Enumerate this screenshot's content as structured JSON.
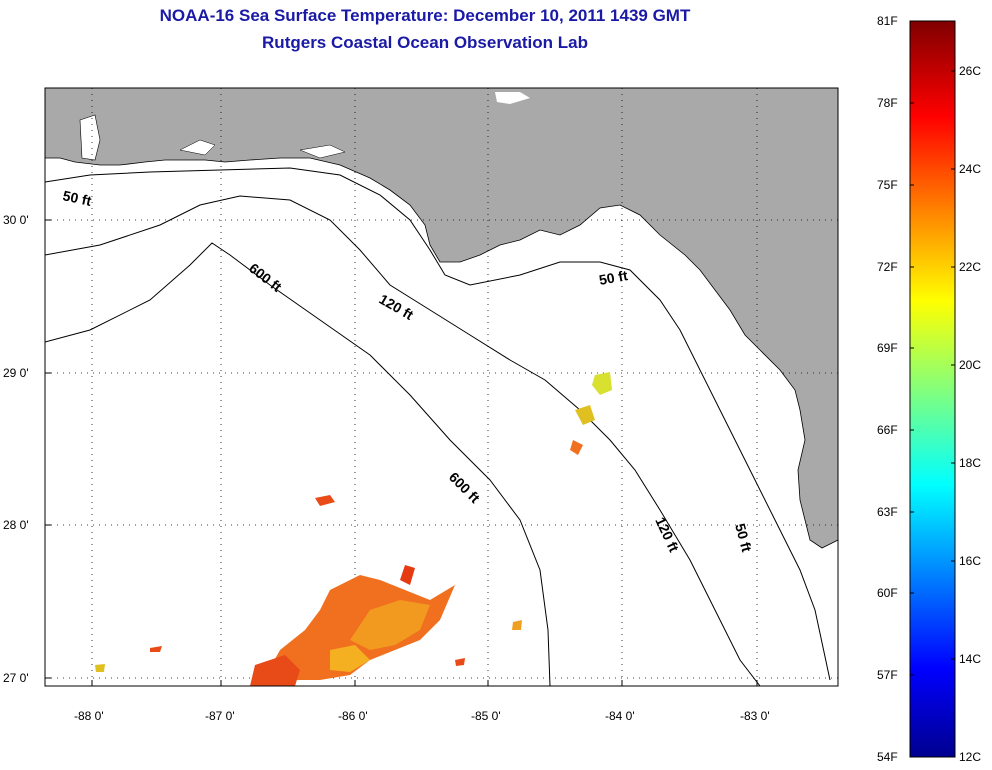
{
  "title": {
    "line1": "NOAA-16 Sea Surface Temperature:  December 10, 2011 1439 GMT",
    "line2": "Rutgers Coastal Ocean Observation Lab"
  },
  "axes": {
    "longitude_labels": [
      "-88 0'",
      "-87 0'",
      "-86 0'",
      "-85 0'",
      "-84 0'",
      "-83 0'"
    ],
    "latitude_labels": [
      "30 0'",
      "29 0'",
      "28 0'",
      "27 0'"
    ]
  },
  "contours": {
    "label_50": "50 ft",
    "label_120": "120 ft",
    "label_600": "600 ft"
  },
  "colorbar": {
    "fahrenheit": [
      "81F",
      "78F",
      "75F",
      "72F",
      "69F",
      "66F",
      "63F",
      "60F",
      "57F",
      "54F"
    ],
    "celsius": [
      "26C",
      "24C",
      "22C",
      "20C",
      "18C",
      "16C",
      "14C",
      "12C"
    ]
  },
  "colors": {
    "land": "#a9a9a9",
    "title": "#1a1aa6"
  }
}
